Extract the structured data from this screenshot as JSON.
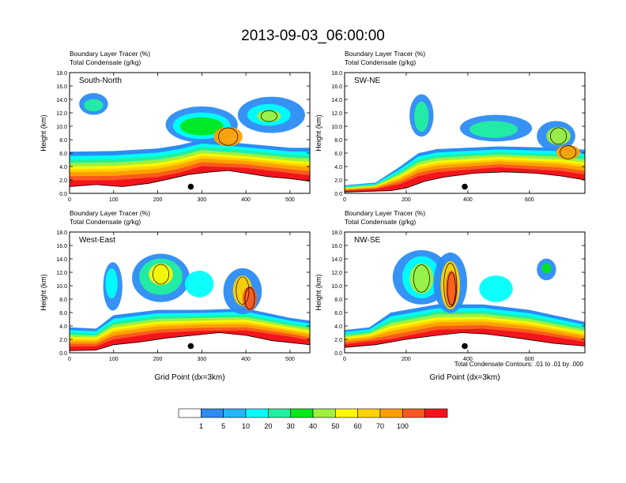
{
  "figure": {
    "title": "2013-09-03_06:00:00",
    "condensate_note": "Total Condensate Contours: .01 to .01 by .000"
  },
  "colorbar": {
    "colors": [
      "#ffffff",
      "#2b8cf4",
      "#28b4f8",
      "#00fffc",
      "#21f0a0",
      "#00e81c",
      "#a0f040",
      "#fff800",
      "#ffd200",
      "#ffa000",
      "#fb5a1e",
      "#f4141c"
    ],
    "labels": [
      "1",
      "5",
      "10",
      "20",
      "30",
      "40",
      "50",
      "60",
      "70",
      "100"
    ]
  },
  "chart_data": [
    {
      "type": "contour",
      "label": "South-North",
      "subtitle1": "Boundary Layer Tracer   (%)",
      "subtitle2": "Total Condensate   (g/kg)",
      "ylabel": "Height (km)",
      "xlabel": "",
      "xlim": [
        0,
        545
      ],
      "ylim": [
        0,
        18
      ],
      "xticks": [
        0,
        100,
        200,
        300,
        400,
        500
      ],
      "yticks": [
        "0.0",
        "2.0",
        "4.0",
        "6.0",
        "8.0",
        "10.0",
        "12.0",
        "14.0",
        "16.0",
        "18.0"
      ],
      "dot": [
        275,
        1.0
      ],
      "base_top": [
        [
          0,
          6.2
        ],
        [
          100,
          6.3
        ],
        [
          200,
          6.7
        ],
        [
          250,
          7.2
        ],
        [
          300,
          8.0
        ],
        [
          400,
          7.4
        ],
        [
          500,
          6.8
        ],
        [
          545,
          6.8
        ]
      ],
      "terrain": [
        [
          0,
          1.0
        ],
        [
          60,
          1.3
        ],
        [
          120,
          1.0
        ],
        [
          180,
          1.5
        ],
        [
          230,
          2.2
        ],
        [
          270,
          2.8
        ],
        [
          320,
          3.2
        ],
        [
          360,
          3.4
        ],
        [
          400,
          3.0
        ],
        [
          450,
          2.5
        ],
        [
          500,
          2.2
        ],
        [
          545,
          1.8
        ]
      ]
    },
    {
      "type": "contour",
      "label": "SW-NE",
      "subtitle1": "Boundary Layer Tracer   (%)",
      "subtitle2": "Total Condensate   (g/kg)",
      "ylabel": "Height (km)",
      "xlabel": "",
      "xlim": [
        0,
        780
      ],
      "ylim": [
        0,
        18
      ],
      "xticks": [
        0,
        200,
        400,
        600
      ],
      "yticks": [
        "0.0",
        "2.0",
        "4.0",
        "6.0",
        "8.0",
        "10.0",
        "12.0",
        "14.0",
        "16.0",
        "18.0"
      ],
      "dot": [
        390,
        1.0
      ],
      "base_top": [
        [
          0,
          1.2
        ],
        [
          100,
          1.6
        ],
        [
          180,
          4.0
        ],
        [
          240,
          6.0
        ],
        [
          300,
          6.6
        ],
        [
          500,
          7.0
        ],
        [
          700,
          6.8
        ],
        [
          780,
          6.5
        ]
      ],
      "terrain": [
        [
          0,
          0.2
        ],
        [
          150,
          0.4
        ],
        [
          200,
          0.8
        ],
        [
          260,
          1.8
        ],
        [
          320,
          2.4
        ],
        [
          420,
          3.0
        ],
        [
          520,
          3.2
        ],
        [
          620,
          3.0
        ],
        [
          700,
          2.6
        ],
        [
          780,
          2.0
        ]
      ]
    },
    {
      "type": "contour",
      "label": "West-East",
      "subtitle1": "Boundary Layer Tracer   (%)",
      "subtitle2": "Total Condensate   (g/kg)",
      "ylabel": "Height (km)",
      "xlabel": "Grid Point (dx=3km)",
      "xlim": [
        0,
        545
      ],
      "ylim": [
        0,
        18
      ],
      "xticks": [
        0,
        100,
        200,
        300,
        400,
        500
      ],
      "yticks": [
        "0.0",
        "2.0",
        "4.0",
        "6.0",
        "8.0",
        "10.0",
        "12.0",
        "14.0",
        "16.0",
        "18.0"
      ],
      "dot": [
        275,
        1.0
      ],
      "base_top": [
        [
          0,
          3.8
        ],
        [
          60,
          3.6
        ],
        [
          100,
          5.6
        ],
        [
          200,
          6.4
        ],
        [
          300,
          6.4
        ],
        [
          400,
          6.6
        ],
        [
          500,
          5.2
        ],
        [
          545,
          4.8
        ]
      ],
      "terrain": [
        [
          0,
          0.3
        ],
        [
          60,
          0.4
        ],
        [
          100,
          1.2
        ],
        [
          160,
          1.6
        ],
        [
          220,
          2.2
        ],
        [
          280,
          2.6
        ],
        [
          340,
          3.0
        ],
        [
          400,
          2.6
        ],
        [
          460,
          1.8
        ],
        [
          545,
          1.2
        ]
      ]
    },
    {
      "type": "contour",
      "label": "NW-SE",
      "subtitle1": "Boundary Layer Tracer   (%)",
      "subtitle2": "Total Condensate   (g/kg)",
      "ylabel": "Height (km)",
      "xlabel": "Grid Point (dx=3km)",
      "xlim": [
        0,
        780
      ],
      "ylim": [
        0,
        18
      ],
      "xticks": [
        0,
        200,
        400,
        600
      ],
      "yticks": [
        "0.0",
        "2.0",
        "4.0",
        "6.0",
        "8.0",
        "10.0",
        "12.0",
        "14.0",
        "16.0",
        "18.0"
      ],
      "dot": [
        390,
        1.0
      ],
      "base_top": [
        [
          0,
          3.4
        ],
        [
          80,
          3.8
        ],
        [
          150,
          6.0
        ],
        [
          300,
          7.2
        ],
        [
          450,
          7.2
        ],
        [
          600,
          6.4
        ],
        [
          780,
          4.6
        ]
      ],
      "terrain": [
        [
          0,
          0.8
        ],
        [
          100,
          1.2
        ],
        [
          200,
          2.0
        ],
        [
          300,
          2.6
        ],
        [
          380,
          3.0
        ],
        [
          460,
          2.8
        ],
        [
          560,
          2.2
        ],
        [
          680,
          1.4
        ],
        [
          780,
          1.0
        ]
      ]
    }
  ]
}
